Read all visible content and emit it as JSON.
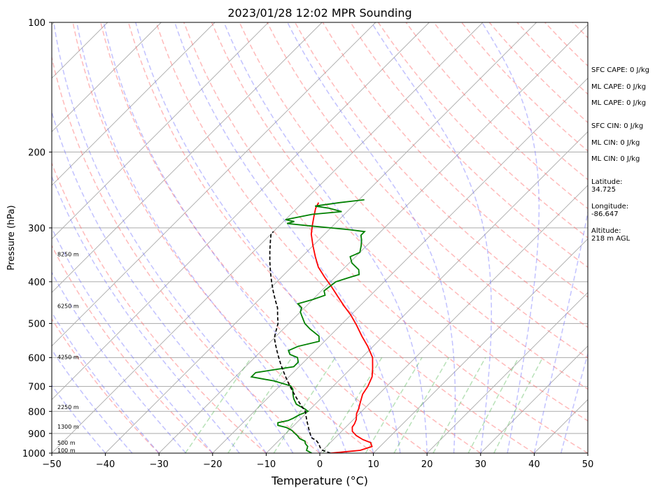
{
  "chart_data": {
    "type": "line",
    "title": "2023/01/28 12:02 MPR Sounding",
    "xlabel": "Temperature (°C)",
    "ylabel": "Pressure (hPa)",
    "xlim": [
      -50,
      50
    ],
    "ylim": [
      1000,
      100
    ],
    "y_scale": "log",
    "x_ticks": [
      -50,
      -40,
      -30,
      -20,
      -10,
      0,
      10,
      20,
      30,
      40,
      50
    ],
    "x_tick_labels": [
      "−50",
      "−40",
      "−30",
      "−20",
      "−10",
      "0",
      "10",
      "20",
      "30",
      "40",
      "50"
    ],
    "y_ticks": [
      1000,
      900,
      800,
      700,
      600,
      500,
      400,
      300,
      200,
      100
    ],
    "y_tick_labels": [
      "1000",
      "900",
      "800",
      "700",
      "600",
      "500",
      "400",
      "300",
      "200",
      "100"
    ],
    "height_labels": [
      {
        "p": 985,
        "text": "100 m"
      },
      {
        "p": 945,
        "text": "500 m"
      },
      {
        "p": 868,
        "text": "1300 m"
      },
      {
        "p": 782,
        "text": "2250 m"
      },
      {
        "p": 598,
        "text": "4250 m"
      },
      {
        "p": 455,
        "text": "6250 m"
      },
      {
        "p": 345,
        "text": "8250 m"
      }
    ],
    "series": [
      {
        "color": "#ff0000",
        "points": [
          [
            2,
            1000
          ],
          [
            7,
            985
          ],
          [
            8.5,
            965
          ],
          [
            7.5,
            945
          ],
          [
            5.5,
            930
          ],
          [
            3.5,
            910
          ],
          [
            2,
            890
          ],
          [
            1.2,
            870
          ],
          [
            1,
            855
          ],
          [
            0.5,
            835
          ],
          [
            -0.5,
            810
          ],
          [
            -1,
            790
          ],
          [
            -2,
            760
          ],
          [
            -3,
            730
          ],
          [
            -3.5,
            700
          ],
          [
            -4.5,
            665
          ],
          [
            -6,
            635
          ],
          [
            -8,
            600
          ],
          [
            -11,
            565
          ],
          [
            -14,
            535
          ],
          [
            -17,
            505
          ],
          [
            -20,
            478
          ],
          [
            -23,
            455
          ],
          [
            -26,
            432
          ],
          [
            -29,
            410
          ],
          [
            -32,
            390
          ],
          [
            -35,
            370
          ],
          [
            -37.5,
            350
          ],
          [
            -40,
            330
          ],
          [
            -42.5,
            310
          ],
          [
            -44,
            295
          ],
          [
            -45.5,
            280
          ],
          [
            -46.5,
            270
          ],
          [
            -47,
            262
          ]
        ]
      },
      {
        "color": "#008000",
        "points": [
          [
            -1.5,
            1000
          ],
          [
            -3,
            985
          ],
          [
            -3.5,
            965
          ],
          [
            -4.5,
            950
          ],
          [
            -5,
            938
          ],
          [
            -6.5,
            925
          ],
          [
            -7.5,
            910
          ],
          [
            -8.5,
            898
          ],
          [
            -9.5,
            885
          ],
          [
            -11,
            872
          ],
          [
            -13,
            862
          ],
          [
            -13.5,
            850
          ],
          [
            -12,
            840
          ],
          [
            -11.5,
            830
          ],
          [
            -11,
            815
          ],
          [
            -10,
            800
          ],
          [
            -11,
            790
          ],
          [
            -13.5,
            770
          ],
          [
            -15,
            748
          ],
          [
            -16,
            730
          ],
          [
            -17,
            710
          ],
          [
            -18,
            698
          ],
          [
            -22,
            680
          ],
          [
            -27,
            665
          ],
          [
            -27,
            650
          ],
          [
            -21,
            630
          ],
          [
            -21,
            615
          ],
          [
            -22,
            600
          ],
          [
            -24,
            590
          ],
          [
            -25,
            578
          ],
          [
            -24,
            565
          ],
          [
            -21,
            550
          ],
          [
            -22,
            535
          ],
          [
            -25,
            515
          ],
          [
            -27,
            500
          ],
          [
            -29,
            480
          ],
          [
            -30,
            470
          ],
          [
            -30.5,
            460
          ],
          [
            -32,
            450
          ],
          [
            -30,
            440
          ],
          [
            -28.5,
            430
          ],
          [
            -29.5,
            420
          ],
          [
            -29,
            400
          ],
          [
            -27.5,
            392
          ],
          [
            -26,
            385
          ],
          [
            -27,
            375
          ],
          [
            -29.5,
            362
          ],
          [
            -31,
            350
          ],
          [
            -30,
            342
          ],
          [
            -31,
            330
          ],
          [
            -32,
            320
          ],
          [
            -33,
            312
          ],
          [
            -33,
            306
          ],
          [
            -36,
            303
          ],
          [
            -40,
            300
          ],
          [
            -44,
            297
          ],
          [
            -49,
            293
          ],
          [
            -48,
            290
          ],
          [
            -50,
            287
          ],
          [
            -46,
            279
          ],
          [
            -41,
            275
          ],
          [
            -44,
            270
          ],
          [
            -47,
            267
          ],
          [
            -43,
            262
          ],
          [
            -39,
            258
          ]
        ]
      },
      {
        "color": "#000000",
        "dashed": true,
        "points": [
          [
            2,
            1000
          ],
          [
            0,
            985
          ],
          [
            -1,
            970
          ],
          [
            -2,
            950
          ],
          [
            -3,
            935
          ],
          [
            -4.5,
            920
          ],
          [
            -5.5,
            900
          ],
          [
            -6.5,
            880
          ],
          [
            -7.5,
            860
          ],
          [
            -8.5,
            840
          ],
          [
            -9.5,
            820
          ],
          [
            -10.5,
            800
          ],
          [
            -12,
            780
          ],
          [
            -13.5,
            760
          ],
          [
            -15,
            740
          ],
          [
            -16.5,
            720
          ],
          [
            -18,
            700
          ],
          [
            -19.5,
            680
          ],
          [
            -21,
            660
          ],
          [
            -22.5,
            640
          ],
          [
            -24,
            620
          ],
          [
            -25.5,
            600
          ],
          [
            -27,
            580
          ],
          [
            -28.5,
            560
          ],
          [
            -30,
            540
          ],
          [
            -31,
            520
          ],
          [
            -32,
            500
          ],
          [
            -33.5,
            480
          ],
          [
            -35,
            460
          ],
          [
            -37,
            440
          ],
          [
            -39,
            420
          ],
          [
            -41,
            400
          ],
          [
            -43,
            380
          ],
          [
            -45,
            360
          ],
          [
            -47,
            340
          ],
          [
            -49,
            320
          ],
          [
            -50,
            310
          ],
          [
            -50,
            306
          ]
        ]
      }
    ]
  },
  "indices": {
    "sfc_cape": "SFC CAPE: 0 J/kg",
    "ml_cape_1": "ML CAPE: 0 J/kg",
    "ml_cape_2": "ML CAPE: 0 J/kg",
    "sfc_cin": "SFC CIN: 0 J/kg",
    "ml_cin_1": "ML CIN: 0 J/kg",
    "ml_cin_2": "ML CIN: 0 J/kg",
    "latitude_label": "Latitude:",
    "latitude_value": "34.725",
    "longitude_label": "Longitude:",
    "longitude_value": "-86.647",
    "altitude_label": "Altitude:",
    "altitude_value": "218 m AGL"
  }
}
